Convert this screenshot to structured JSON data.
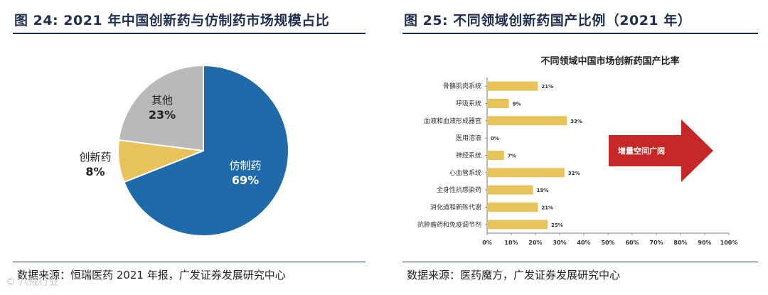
{
  "left": {
    "title": "图 24: 2021 年中国创新药与仿制药市场规模占比",
    "source": "数据来源：恒瑞医药 2021 年报，广发证券发展研究中心"
  },
  "right": {
    "title": "图 25: 不同领域创新药国产比例（2021 年）",
    "source": "数据来源：医药魔方，广发证券发展研究中心"
  },
  "watermark": "© 八戒行业",
  "chart_data": [
    {
      "type": "pie",
      "title": "",
      "slices": [
        {
          "label": "仿制药",
          "value": 69,
          "value_label": "69%",
          "color": "#1f6aa8"
        },
        {
          "label": "创新药",
          "value": 8,
          "value_label": "8%",
          "color": "#e8c35a"
        },
        {
          "label": "其他",
          "value": 23,
          "value_label": "23%",
          "color": "#b9b9b9"
        }
      ]
    },
    {
      "type": "bar",
      "orientation": "horizontal",
      "title": "不同领域中国市场创新药国产比率",
      "categories": [
        "骨骼肌肉系统",
        "呼吸系统",
        "血液和血液形成器官",
        "医用溶液",
        "神经系统",
        "心血管系统",
        "全身性抗感染药",
        "消化道和新陈代谢",
        "抗肿瘤药和免疫调节剂"
      ],
      "values": [
        21,
        9,
        33,
        0,
        7,
        32,
        19,
        21,
        25
      ],
      "value_labels": [
        "21%",
        "9%",
        "33%",
        "0%",
        "7%",
        "32%",
        "19%",
        "21%",
        "25%"
      ],
      "xlim": [
        0,
        100
      ],
      "x_ticks": [
        "0%",
        "10%",
        "20%",
        "30%",
        "40%",
        "50%",
        "60%",
        "70%",
        "80%",
        "90%",
        "100%"
      ],
      "bar_color": "#e8c35a",
      "grid": false,
      "annotation": {
        "text": "增量空间广阔",
        "shape": "right-arrow",
        "color": "#c62828"
      }
    }
  ]
}
